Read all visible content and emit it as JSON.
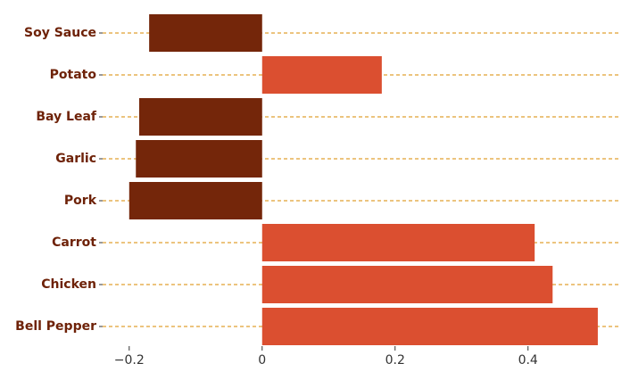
{
  "chart_data": {
    "type": "bar",
    "orientation": "horizontal",
    "title": "",
    "xlabel": "",
    "ylabel": "",
    "categories": [
      "Soy Sauce",
      "Potato",
      "Bay Leaf",
      "Garlic",
      "Pork",
      "Carrot",
      "Chicken",
      "Bell Pepper"
    ],
    "values": [
      -0.17,
      0.18,
      -0.185,
      -0.19,
      -0.2,
      0.41,
      0.437,
      0.505
    ],
    "xlim": [
      -0.24,
      0.54
    ],
    "xticks": [
      -0.2,
      0,
      0.2,
      0.4
    ],
    "xtick_labels": [
      "−0.2",
      "0",
      "0.2",
      "0.4"
    ],
    "grid": "horizontal dashed",
    "legend": "none"
  },
  "colors": {
    "negative": "#74260a",
    "positive": "#db4f30",
    "grid": "#e0a030",
    "label": "#6e2208",
    "tick": "#333333"
  }
}
